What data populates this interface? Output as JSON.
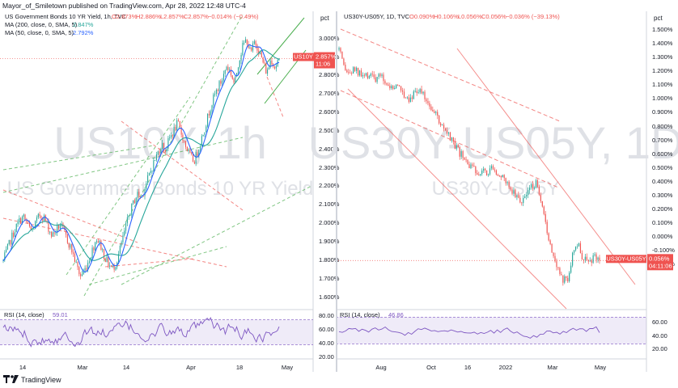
{
  "publisher_line": "Mayor_of_Smiletown published on TradingView.com, Apr 28, 2022 12:48 UTC-4",
  "brand": "TradingView",
  "colors": {
    "up": "#26a69a",
    "down": "#ef5350",
    "ma200": "#26a69a",
    "ma50": "#2962ff",
    "rsi": "#7e57c2",
    "channel_green": "#4caf50",
    "channel_red": "#ef5350",
    "price_line": "#ef5350"
  },
  "chart_data": [
    {
      "type": "candlestick",
      "symbol_line": "US Government Bonds 10 YR Yield, 1h, TVC",
      "ohlc_text": {
        "o": "O2.873%",
        "h": "H2.886%",
        "l": "L2.857%",
        "c": "C2.857%",
        "chg": "−0.014% (−0.49%)"
      },
      "indicators": [
        {
          "label": "MA (200, close, 0, SMA, 5)",
          "value": "2.847%",
          "color": "#26a69a"
        },
        {
          "label": "MA (50, close, 0, SMA, 5)",
          "value": "2.792%",
          "color": "#2962ff"
        }
      ],
      "watermark_big": "US10Y, 1h",
      "watermark_small": "US Government Bonds 10 YR Yield",
      "unit_label": "pct",
      "y_ticks": [
        "3.000%",
        "2.900%",
        "2.800%",
        "2.700%",
        "2.600%",
        "2.500%",
        "2.400%",
        "2.300%",
        "2.200%",
        "2.100%",
        "2.000%",
        "1.900%",
        "1.800%",
        "1.700%",
        "1.600%"
      ],
      "x_ticks": [
        "14",
        "Mar",
        "14",
        "Apr",
        "18",
        "May"
      ],
      "ylim": [
        1.55,
        3.1
      ],
      "price_label": {
        "ticker": "US10Y",
        "value": "2.857%",
        "time": "11:06"
      },
      "last_close": 2.857,
      "series_closes": [
        1.8,
        1.86,
        1.92,
        1.97,
        2.01,
        2.03,
        1.99,
        1.95,
        2.0,
        2.04,
        2.03,
        1.98,
        1.93,
        1.96,
        1.99,
        1.95,
        1.9,
        1.85,
        1.78,
        1.72,
        1.75,
        1.8,
        1.86,
        1.92,
        1.88,
        1.82,
        1.78,
        1.76,
        1.8,
        1.88,
        1.96,
        2.04,
        2.1,
        2.15,
        2.13,
        2.19,
        2.25,
        2.31,
        2.36,
        2.41,
        2.38,
        2.44,
        2.48,
        2.52,
        2.46,
        2.4,
        2.35,
        2.32,
        2.38,
        2.45,
        2.52,
        2.6,
        2.66,
        2.71,
        2.75,
        2.82,
        2.79,
        2.72,
        2.84,
        2.92,
        2.96,
        2.88,
        2.95,
        2.9,
        2.84,
        2.78,
        2.86,
        2.81,
        2.86
      ],
      "rsi": {
        "label": "RSI (14, close)",
        "value": "59.01",
        "ticks": [
          "80.00",
          "60.00",
          "40.00",
          "20.00"
        ],
        "band": [
          30,
          70
        ],
        "ylim": [
          10,
          85
        ]
      }
    },
    {
      "type": "candlestick",
      "symbol_line": "US30Y-US05Y, 1D, TVC",
      "ohlc_text": {
        "o": "O0.090%",
        "h": "H0.106%",
        "l": "L0.056%",
        "c": "C0.056%",
        "chg": "−0.036% (−39.13%)"
      },
      "watermark_big": "US30Y-US05Y, 1D",
      "watermark_small": "US30Y-US05Y",
      "unit_label": "pct",
      "y_ticks": [
        "1.500%",
        "1.400%",
        "1.300%",
        "1.200%",
        "1.100%",
        "1.000%",
        "0.900%",
        "0.800%",
        "0.700%",
        "0.600%",
        "0.500%",
        "0.400%",
        "0.300%",
        "0.200%",
        "0.100%",
        "0.000%",
        "-0.100%",
        "-0.200%"
      ],
      "x_ticks": [
        "Aug",
        "Oct",
        "16",
        "2022",
        "Mar",
        "May"
      ],
      "ylim": [
        -0.24,
        1.58
      ],
      "price_label": {
        "ticker": "US30Y-US05Y",
        "value": "0.056%",
        "time": "04:11:06"
      },
      "last_close": 0.056,
      "series_closes": [
        1.35,
        1.22,
        1.2,
        1.23,
        1.19,
        1.18,
        1.21,
        1.16,
        1.19,
        1.14,
        1.11,
        1.13,
        1.09,
        1.05,
        1.08,
        1.11,
        1.06,
        1.02,
        0.96,
        0.9,
        0.84,
        0.8,
        0.74,
        0.7,
        0.66,
        0.62,
        0.59,
        0.63,
        0.6,
        0.64,
        0.58,
        0.55,
        0.52,
        0.47,
        0.42,
        0.45,
        0.5,
        0.53,
        0.4,
        0.25,
        0.13,
        0.03,
        -0.07,
        -0.05,
        0.1,
        0.15,
        0.06,
        0.04,
        0.09,
        0.06
      ],
      "rsi": {
        "label": "RSI (14, close)",
        "value": "46.86",
        "ticks": [
          "60.00",
          "40.00",
          "20.00"
        ],
        "band": [
          30,
          70
        ],
        "ylim": [
          10,
          80
        ]
      }
    }
  ]
}
